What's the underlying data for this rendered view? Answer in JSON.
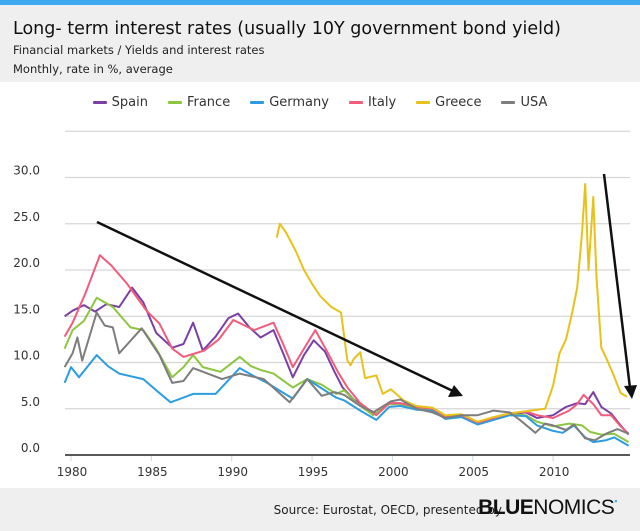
{
  "header": {
    "title": "Long- term interest rates (usually 10Y government bond yield)",
    "subtitle1": "Financial markets / Yields and interest rates",
    "subtitle2": "Monthly, rate in %, average"
  },
  "footer": {
    "source": "Source: Eurostat, OECD, presented by",
    "brand_bold": "BLUE",
    "brand_light": "NOMICS"
  },
  "colors": {
    "accent": "#3fa9f0",
    "header_bg": "#efefef"
  },
  "chart_data": {
    "type": "line",
    "title": "Long- term interest rates (usually 10Y government bond yield)",
    "xlabel": "",
    "ylabel": "rate in %",
    "xlim": [
      1979.5,
      2014.9
    ],
    "ylim": [
      0,
      35
    ],
    "grid": true,
    "legend": "top-center",
    "x_ticks": [
      "1980",
      "1985",
      "1990",
      "1995",
      "2000",
      "2005",
      "2010"
    ],
    "y_ticks": [
      "0.0",
      "5.0",
      "10.0",
      "15.0",
      "20.0",
      "25.0",
      "30.0"
    ],
    "series": [
      {
        "name": "Spain",
        "color": "#7b3fa6",
        "points": [
          [
            1979.6,
            15.0
          ],
          [
            1980.1,
            15.6
          ],
          [
            1980.8,
            16.2
          ],
          [
            1981.5,
            15.5
          ],
          [
            1982.2,
            16.3
          ],
          [
            1983.0,
            16.0
          ],
          [
            1983.8,
            18.1
          ],
          [
            1984.5,
            16.5
          ],
          [
            1985.3,
            13.2
          ],
          [
            1986.3,
            11.6
          ],
          [
            1987.0,
            12.0
          ],
          [
            1987.6,
            14.3
          ],
          [
            1988.2,
            11.3
          ],
          [
            1989.0,
            12.8
          ],
          [
            1989.8,
            14.8
          ],
          [
            1990.4,
            15.3
          ],
          [
            1991.1,
            13.8
          ],
          [
            1991.8,
            12.7
          ],
          [
            1992.6,
            13.5
          ],
          [
            1993.2,
            11.0
          ],
          [
            1993.8,
            8.4
          ],
          [
            1994.5,
            10.8
          ],
          [
            1995.1,
            12.4
          ],
          [
            1995.8,
            11.2
          ],
          [
            1996.4,
            9.0
          ],
          [
            1996.9,
            7.3
          ],
          [
            1997.6,
            6.0
          ],
          [
            1998.4,
            5.0
          ],
          [
            1999.0,
            4.5
          ],
          [
            1999.8,
            5.6
          ],
          [
            2000.5,
            5.6
          ],
          [
            2001.5,
            5.2
          ],
          [
            2002.5,
            5.0
          ],
          [
            2003.3,
            4.2
          ],
          [
            2004.3,
            4.3
          ],
          [
            2005.3,
            3.4
          ],
          [
            2006.3,
            3.9
          ],
          [
            2007.3,
            4.4
          ],
          [
            2008.3,
            4.6
          ],
          [
            2009.0,
            4.0
          ],
          [
            2010.0,
            4.3
          ],
          [
            2010.8,
            5.2
          ],
          [
            2011.5,
            5.6
          ],
          [
            2012.0,
            5.5
          ],
          [
            2012.5,
            6.8
          ],
          [
            2013.0,
            5.2
          ],
          [
            2013.6,
            4.5
          ],
          [
            2014.2,
            3.2
          ],
          [
            2014.7,
            2.2
          ]
        ]
      },
      {
        "name": "France",
        "color": "#8cc63f",
        "points": [
          [
            1979.6,
            11.5
          ],
          [
            1980.1,
            13.5
          ],
          [
            1980.8,
            14.5
          ],
          [
            1981.6,
            17.0
          ],
          [
            1982.6,
            16.0
          ],
          [
            1983.7,
            13.8
          ],
          [
            1984.5,
            13.5
          ],
          [
            1985.3,
            11.5
          ],
          [
            1986.3,
            8.4
          ],
          [
            1987.0,
            9.5
          ],
          [
            1987.6,
            10.8
          ],
          [
            1988.2,
            9.5
          ],
          [
            1989.3,
            9.0
          ],
          [
            1990.5,
            10.6
          ],
          [
            1991.2,
            9.6
          ],
          [
            1991.8,
            9.2
          ],
          [
            1992.6,
            8.8
          ],
          [
            1993.8,
            7.3
          ],
          [
            1994.7,
            8.2
          ],
          [
            1995.6,
            7.6
          ],
          [
            1996.5,
            6.6
          ],
          [
            1997.0,
            7.0
          ],
          [
            1997.8,
            5.6
          ],
          [
            1998.8,
            4.3
          ],
          [
            1999.8,
            5.5
          ],
          [
            2000.5,
            5.5
          ],
          [
            2001.5,
            5.0
          ],
          [
            2002.5,
            4.9
          ],
          [
            2003.3,
            4.0
          ],
          [
            2004.3,
            4.3
          ],
          [
            2005.3,
            3.4
          ],
          [
            2006.3,
            3.9
          ],
          [
            2007.3,
            4.4
          ],
          [
            2008.3,
            4.3
          ],
          [
            2009.0,
            3.6
          ],
          [
            2010.0,
            3.1
          ],
          [
            2011.0,
            3.4
          ],
          [
            2011.8,
            3.2
          ],
          [
            2012.3,
            2.5
          ],
          [
            2013.0,
            2.2
          ],
          [
            2013.8,
            2.3
          ],
          [
            2014.7,
            1.4
          ]
        ]
      },
      {
        "name": "Germany",
        "color": "#2b9de0",
        "points": [
          [
            1979.6,
            7.8
          ],
          [
            1980.0,
            9.5
          ],
          [
            1980.5,
            8.4
          ],
          [
            1981.6,
            10.8
          ],
          [
            1982.3,
            9.6
          ],
          [
            1983.0,
            8.8
          ],
          [
            1984.5,
            8.2
          ],
          [
            1985.3,
            7.0
          ],
          [
            1986.2,
            5.7
          ],
          [
            1987.0,
            6.2
          ],
          [
            1987.6,
            6.6
          ],
          [
            1989.0,
            6.6
          ],
          [
            1990.5,
            9.4
          ],
          [
            1991.3,
            8.6
          ],
          [
            1992.2,
            7.8
          ],
          [
            1993.8,
            6.1
          ],
          [
            1994.7,
            8.2
          ],
          [
            1995.6,
            7.2
          ],
          [
            1996.5,
            6.2
          ],
          [
            1997.0,
            5.9
          ],
          [
            1998.0,
            4.8
          ],
          [
            1999.0,
            3.8
          ],
          [
            1999.8,
            5.2
          ],
          [
            2000.5,
            5.3
          ],
          [
            2001.5,
            4.9
          ],
          [
            2002.5,
            4.8
          ],
          [
            2003.3,
            3.9
          ],
          [
            2004.3,
            4.1
          ],
          [
            2005.3,
            3.3
          ],
          [
            2006.3,
            3.8
          ],
          [
            2007.3,
            4.3
          ],
          [
            2008.3,
            4.2
          ],
          [
            2009.0,
            3.2
          ],
          [
            2010.0,
            2.6
          ],
          [
            2010.6,
            2.4
          ],
          [
            2011.3,
            3.2
          ],
          [
            2012.0,
            1.9
          ],
          [
            2012.5,
            1.4
          ],
          [
            2013.3,
            1.6
          ],
          [
            2013.8,
            1.9
          ],
          [
            2014.7,
            1.0
          ]
        ]
      },
      {
        "name": "Italy",
        "color": "#f25b7c",
        "points": [
          [
            1979.6,
            12.8
          ],
          [
            1980.1,
            14.3
          ],
          [
            1980.9,
            17.5
          ],
          [
            1981.8,
            21.6
          ],
          [
            1982.5,
            20.5
          ],
          [
            1983.5,
            18.5
          ],
          [
            1984.7,
            15.6
          ],
          [
            1985.5,
            14.2
          ],
          [
            1986.3,
            11.5
          ],
          [
            1987.0,
            10.6
          ],
          [
            1988.3,
            11.3
          ],
          [
            1989.2,
            12.5
          ],
          [
            1990.1,
            14.6
          ],
          [
            1991.4,
            13.5
          ],
          [
            1992.6,
            14.3
          ],
          [
            1993.2,
            12.0
          ],
          [
            1993.8,
            9.5
          ],
          [
            1994.5,
            11.5
          ],
          [
            1995.2,
            13.5
          ],
          [
            1996.0,
            11.0
          ],
          [
            1996.6,
            9.0
          ],
          [
            1997.2,
            7.3
          ],
          [
            1998.0,
            5.6
          ],
          [
            1999.0,
            4.3
          ],
          [
            1999.8,
            5.6
          ],
          [
            2000.5,
            5.6
          ],
          [
            2001.5,
            5.2
          ],
          [
            2002.5,
            5.0
          ],
          [
            2003.3,
            4.2
          ],
          [
            2004.3,
            4.3
          ],
          [
            2005.3,
            3.5
          ],
          [
            2006.3,
            4.0
          ],
          [
            2007.3,
            4.5
          ],
          [
            2008.3,
            4.7
          ],
          [
            2009.0,
            4.3
          ],
          [
            2010.0,
            4.0
          ],
          [
            2011.0,
            4.8
          ],
          [
            2011.5,
            5.5
          ],
          [
            2011.9,
            6.5
          ],
          [
            2012.5,
            5.5
          ],
          [
            2013.0,
            4.3
          ],
          [
            2013.6,
            4.3
          ],
          [
            2014.2,
            3.1
          ],
          [
            2014.7,
            2.3
          ]
        ]
      },
      {
        "name": "Greece",
        "color": "#e8c21a",
        "points": [
          [
            1992.8,
            23.5
          ],
          [
            1993.0,
            25.0
          ],
          [
            1993.4,
            24.0
          ],
          [
            1994.0,
            22.0
          ],
          [
            1994.5,
            20.0
          ],
          [
            1995.0,
            18.5
          ],
          [
            1995.5,
            17.2
          ],
          [
            1996.2,
            16.0
          ],
          [
            1996.8,
            15.4
          ],
          [
            1997.2,
            10.2
          ],
          [
            1997.4,
            9.7
          ],
          [
            1997.6,
            10.4
          ],
          [
            1998.0,
            11.1
          ],
          [
            1998.3,
            8.3
          ],
          [
            1999.0,
            8.6
          ],
          [
            1999.4,
            6.6
          ],
          [
            1999.9,
            7.1
          ],
          [
            2000.7,
            5.9
          ],
          [
            2001.5,
            5.3
          ],
          [
            2002.5,
            5.1
          ],
          [
            2003.3,
            4.3
          ],
          [
            2004.3,
            4.4
          ],
          [
            2005.3,
            3.6
          ],
          [
            2006.3,
            4.1
          ],
          [
            2007.3,
            4.5
          ],
          [
            2008.6,
            4.8
          ],
          [
            2009.5,
            5.0
          ],
          [
            2010.0,
            7.5
          ],
          [
            2010.4,
            11.0
          ],
          [
            2010.8,
            12.5
          ],
          [
            2011.2,
            15.5
          ],
          [
            2011.5,
            18.1
          ],
          [
            2011.8,
            24.0
          ],
          [
            2012.0,
            29.3
          ],
          [
            2012.2,
            20.0
          ],
          [
            2012.5,
            27.9
          ],
          [
            2012.7,
            19.2
          ],
          [
            2013.0,
            11.6
          ],
          [
            2013.3,
            10.5
          ],
          [
            2013.7,
            8.9
          ],
          [
            2014.2,
            6.7
          ],
          [
            2014.6,
            6.3
          ]
        ]
      },
      {
        "name": "USA",
        "color": "#7d7d7d",
        "points": [
          [
            1979.6,
            9.5
          ],
          [
            1980.1,
            11.0
          ],
          [
            1980.4,
            12.7
          ],
          [
            1980.7,
            10.2
          ],
          [
            1981.6,
            15.4
          ],
          [
            1982.1,
            14.0
          ],
          [
            1982.6,
            13.8
          ],
          [
            1983.0,
            11.0
          ],
          [
            1984.4,
            13.7
          ],
          [
            1985.5,
            10.8
          ],
          [
            1986.3,
            7.8
          ],
          [
            1987.0,
            8.0
          ],
          [
            1987.6,
            9.4
          ],
          [
            1988.5,
            8.8
          ],
          [
            1989.4,
            8.2
          ],
          [
            1990.5,
            8.8
          ],
          [
            1992.0,
            8.2
          ],
          [
            1993.6,
            5.7
          ],
          [
            1994.7,
            8.2
          ],
          [
            1995.6,
            6.4
          ],
          [
            1996.4,
            6.8
          ],
          [
            1997.0,
            6.5
          ],
          [
            1998.0,
            5.3
          ],
          [
            1998.8,
            4.6
          ],
          [
            1999.9,
            5.8
          ],
          [
            2000.5,
            6.0
          ],
          [
            2001.5,
            5.0
          ],
          [
            2002.5,
            4.6
          ],
          [
            2003.3,
            4.0
          ],
          [
            2004.3,
            4.3
          ],
          [
            2005.3,
            4.3
          ],
          [
            2006.3,
            4.8
          ],
          [
            2007.3,
            4.6
          ],
          [
            2008.0,
            3.7
          ],
          [
            2008.9,
            2.4
          ],
          [
            2009.5,
            3.4
          ],
          [
            2010.0,
            3.2
          ],
          [
            2010.8,
            2.7
          ],
          [
            2011.3,
            3.3
          ],
          [
            2012.0,
            1.8
          ],
          [
            2012.6,
            1.6
          ],
          [
            2013.3,
            2.3
          ],
          [
            2014.0,
            2.8
          ],
          [
            2014.7,
            2.3
          ]
        ]
      }
    ]
  }
}
